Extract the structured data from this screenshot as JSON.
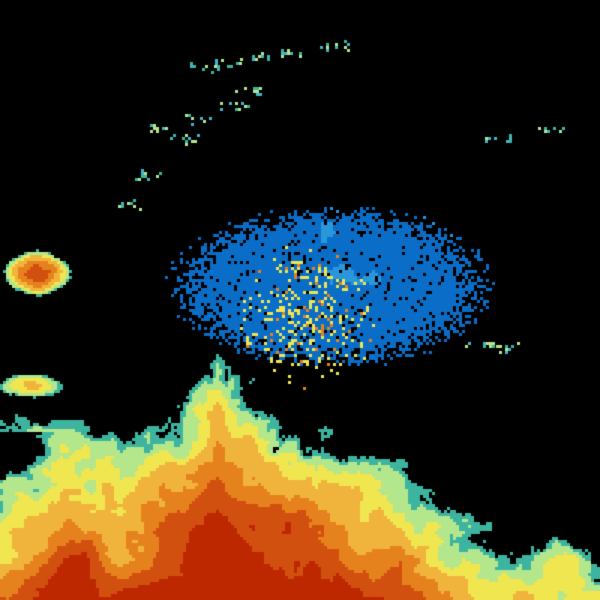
{
  "image": {
    "kind": "weather radar reflectivity display",
    "background": "#000000",
    "palette": {
      "clutter_blue": "#0a6ec8",
      "clutter_blue_light": "#2a96dc",
      "cyan": "#46b4c8",
      "teal": "#3cb4a0",
      "light_green": "#b4e68c",
      "yellow": "#f0e650",
      "light_orange": "#f0b43c",
      "orange": "#e6821e",
      "red_orange": "#d2500f",
      "red": "#be2800"
    }
  }
}
